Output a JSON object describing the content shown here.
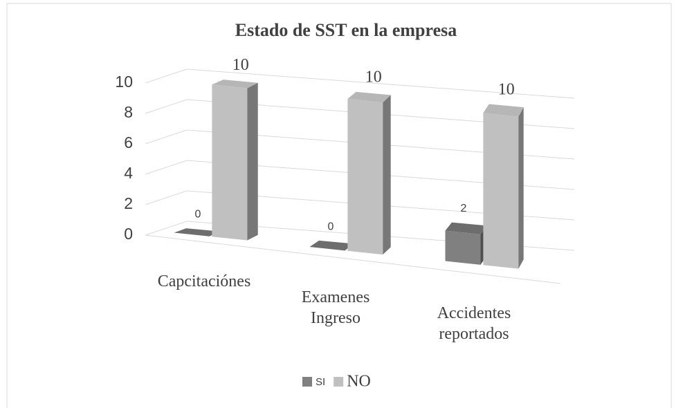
{
  "chart_data": {
    "type": "bar3d",
    "title": "Estado de SST en la empresa",
    "categories": [
      "Capcitaciónes",
      "Examenes Ingreso",
      "Accidentes reportados"
    ],
    "series": [
      {
        "name": "SI",
        "color": "#808080",
        "values": [
          0,
          0,
          2
        ]
      },
      {
        "name": "NO",
        "color": "#c0c0c0",
        "values": [
          10,
          10,
          10
        ]
      }
    ],
    "ylim": [
      0,
      10
    ],
    "yticks": [
      0,
      2,
      4,
      6,
      8,
      10
    ],
    "grid": true,
    "legend": "bottom"
  }
}
